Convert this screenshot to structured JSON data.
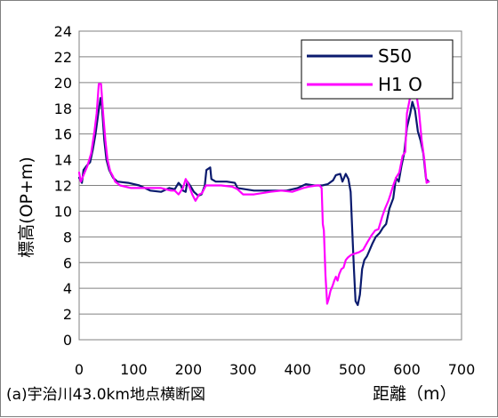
{
  "chart_data": {
    "type": "line",
    "caption": "(a)宇治川43.0km地点横断図",
    "xlabel": "距離（m）",
    "ylabel": "標高(OP+m)",
    "xlim": [
      0,
      700
    ],
    "ylim": [
      0,
      24
    ],
    "x_ticks": [
      "0",
      "100",
      "200",
      "300",
      "400",
      "500",
      "600",
      "700"
    ],
    "y_ticks": [
      "0",
      "2",
      "4",
      "6",
      "8",
      "10",
      "12",
      "14",
      "16",
      "18",
      "20",
      "22",
      "24"
    ],
    "grid": "horizontal",
    "legend_position": "top-right",
    "series": [
      {
        "name": "S50",
        "color": "#0a1a6e",
        "points": [
          [
            0,
            12.6
          ],
          [
            5,
            12.2
          ],
          [
            8,
            13.2
          ],
          [
            15,
            13.6
          ],
          [
            20,
            13.8
          ],
          [
            25,
            14.8
          ],
          [
            30,
            16.0
          ],
          [
            35,
            17.6
          ],
          [
            39,
            18.8
          ],
          [
            42,
            18.0
          ],
          [
            46,
            15.5
          ],
          [
            50,
            14.0
          ],
          [
            55,
            13.2
          ],
          [
            62,
            12.6
          ],
          [
            70,
            12.3
          ],
          [
            90,
            12.2
          ],
          [
            110,
            12.0
          ],
          [
            130,
            11.6
          ],
          [
            150,
            11.5
          ],
          [
            165,
            11.8
          ],
          [
            175,
            11.7
          ],
          [
            182,
            12.2
          ],
          [
            186,
            12.0
          ],
          [
            190,
            11.6
          ],
          [
            195,
            11.5
          ],
          [
            198,
            12.3
          ],
          [
            203,
            12.0
          ],
          [
            210,
            11.5
          ],
          [
            218,
            11.2
          ],
          [
            224,
            11.3
          ],
          [
            230,
            12.0
          ],
          [
            233,
            13.2
          ],
          [
            240,
            13.4
          ],
          [
            242,
            12.5
          ],
          [
            250,
            12.3
          ],
          [
            270,
            12.3
          ],
          [
            285,
            12.2
          ],
          [
            290,
            11.8
          ],
          [
            320,
            11.6
          ],
          [
            350,
            11.6
          ],
          [
            380,
            11.6
          ],
          [
            400,
            11.8
          ],
          [
            415,
            12.1
          ],
          [
            430,
            12.0
          ],
          [
            445,
            12.0
          ],
          [
            455,
            12.1
          ],
          [
            465,
            12.4
          ],
          [
            470,
            12.8
          ],
          [
            478,
            12.9
          ],
          [
            482,
            12.3
          ],
          [
            488,
            12.9
          ],
          [
            493,
            12.5
          ],
          [
            497,
            11.5
          ],
          [
            500,
            8.5
          ],
          [
            503,
            5.5
          ],
          [
            506,
            3.0
          ],
          [
            510,
            2.7
          ],
          [
            514,
            3.5
          ],
          [
            518,
            5.5
          ],
          [
            522,
            6.2
          ],
          [
            527,
            6.5
          ],
          [
            532,
            7.0
          ],
          [
            537,
            7.5
          ],
          [
            543,
            8.0
          ],
          [
            550,
            8.3
          ],
          [
            556,
            8.7
          ],
          [
            562,
            9.0
          ],
          [
            568,
            10.2
          ],
          [
            575,
            11.0
          ],
          [
            580,
            12.6
          ],
          [
            585,
            12.3
          ],
          [
            590,
            13.5
          ],
          [
            595,
            14.5
          ],
          [
            600,
            16.5
          ],
          [
            606,
            17.6
          ],
          [
            610,
            18.5
          ],
          [
            615,
            17.8
          ],
          [
            620,
            16.2
          ],
          [
            625,
            15.5
          ],
          [
            630,
            14.5
          ],
          [
            635,
            12.5
          ],
          [
            640,
            12.3
          ]
        ]
      },
      {
        "name": "H1 O",
        "color": "#ff00ff",
        "points": [
          [
            0,
            13.0
          ],
          [
            3,
            12.3
          ],
          [
            8,
            12.8
          ],
          [
            15,
            13.5
          ],
          [
            22,
            14.5
          ],
          [
            28,
            16.2
          ],
          [
            32,
            17.6
          ],
          [
            36,
            19.9
          ],
          [
            40,
            19.9
          ],
          [
            44,
            17.6
          ],
          [
            48,
            15.5
          ],
          [
            52,
            14.0
          ],
          [
            57,
            13.1
          ],
          [
            62,
            12.7
          ],
          [
            66,
            12.3
          ],
          [
            75,
            12.0
          ],
          [
            95,
            11.8
          ],
          [
            115,
            11.8
          ],
          [
            135,
            11.8
          ],
          [
            150,
            11.8
          ],
          [
            168,
            11.6
          ],
          [
            175,
            11.6
          ],
          [
            182,
            11.3
          ],
          [
            190,
            11.8
          ],
          [
            195,
            12.5
          ],
          [
            200,
            12.1
          ],
          [
            207,
            11.3
          ],
          [
            213,
            10.8
          ],
          [
            220,
            11.3
          ],
          [
            225,
            11.4
          ],
          [
            232,
            12.0
          ],
          [
            240,
            12.0
          ],
          [
            260,
            12.0
          ],
          [
            280,
            11.9
          ],
          [
            290,
            11.7
          ],
          [
            300,
            11.3
          ],
          [
            320,
            11.3
          ],
          [
            350,
            11.5
          ],
          [
            370,
            11.6
          ],
          [
            390,
            11.5
          ],
          [
            410,
            11.8
          ],
          [
            420,
            11.9
          ],
          [
            435,
            12.0
          ],
          [
            440,
            12.0
          ],
          [
            444,
            11.8
          ],
          [
            446,
            9.0
          ],
          [
            448,
            8.5
          ],
          [
            451,
            5.0
          ],
          [
            454,
            2.8
          ],
          [
            457,
            3.2
          ],
          [
            460,
            3.8
          ],
          [
            464,
            4.2
          ],
          [
            467,
            4.6
          ],
          [
            470,
            4.9
          ],
          [
            473,
            4.6
          ],
          [
            476,
            5.1
          ],
          [
            480,
            5.5
          ],
          [
            484,
            5.6
          ],
          [
            488,
            6.2
          ],
          [
            492,
            6.4
          ],
          [
            498,
            6.6
          ],
          [
            505,
            6.7
          ],
          [
            512,
            6.8
          ],
          [
            520,
            7.0
          ],
          [
            528,
            7.6
          ],
          [
            535,
            8.1
          ],
          [
            542,
            8.5
          ],
          [
            548,
            8.6
          ],
          [
            555,
            9.6
          ],
          [
            560,
            10.2
          ],
          [
            566,
            10.8
          ],
          [
            570,
            11.3
          ],
          [
            575,
            12.0
          ],
          [
            580,
            12.6
          ],
          [
            586,
            13.0
          ],
          [
            592,
            14.3
          ],
          [
            597,
            14.6
          ],
          [
            600,
            17.6
          ],
          [
            606,
            18.9
          ],
          [
            612,
            18.9
          ],
          [
            618,
            18.9
          ],
          [
            622,
            17.8
          ],
          [
            627,
            15.5
          ],
          [
            632,
            14.0
          ],
          [
            636,
            12.2
          ],
          [
            640,
            12.3
          ]
        ]
      }
    ]
  }
}
